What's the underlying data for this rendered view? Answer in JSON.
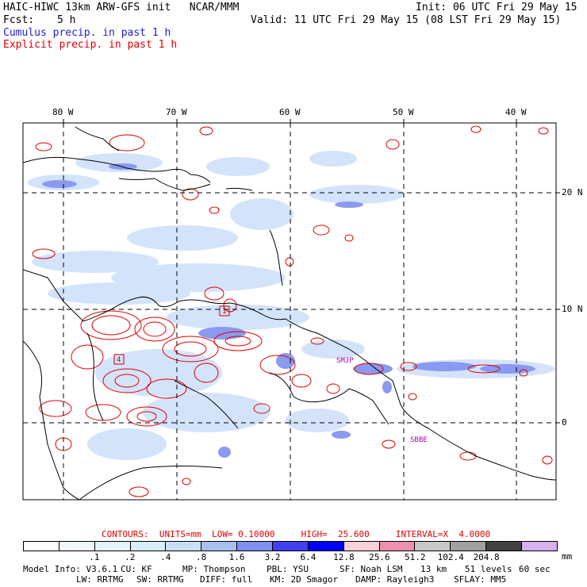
{
  "header": {
    "title": "HAIC-HIWC 13km ARW-GFS init   NCAR/MMM",
    "init": "Init: 06 UTC Fri 29 May 15",
    "fcst_label": "Fcst:",
    "fcst_value": "5 h",
    "valid": "Valid: 11 UTC Fri 29 May 15 (08 LST Fri 29 May 15)",
    "cumulus": "Cumulus precip. in past 1 h",
    "explicit": "Explicit precip. in past 1 h"
  },
  "map": {
    "lon_labels": [
      "80 W",
      "70 W",
      "60 W",
      "50 W",
      "40 W"
    ],
    "lat_labels": [
      "20 N",
      "10 N",
      "0"
    ],
    "stations": [
      "SMJP",
      "SBBE"
    ],
    "markers": [
      "1",
      "4"
    ]
  },
  "contours": {
    "text": "CONTOURS:  UNITS=mm  LOW= 0.10000     HIGH=  25.600     INTERVAL=X  4.0000"
  },
  "colorbar": {
    "colors": [
      "#ffffff",
      "#f0f8ff",
      "#e4f2fa",
      "#d8eef8",
      "#c8e0f8",
      "#a8c0f0",
      "#8090f0",
      "#4040f0",
      "#0000ff",
      "#f8d0d8",
      "#f090b0",
      "#c8c8c8",
      "#a0a0a0",
      "#404040",
      "#d8b0f0"
    ],
    "labels": [
      ".1",
      ".2",
      ".4",
      ".8",
      "1.6",
      "3.2",
      "6.4",
      "12.8",
      "25.6",
      "51.2",
      "102.4",
      "204.8"
    ],
    "units": "mm"
  },
  "footer": {
    "model_info": "Model Info: V3.6.1",
    "cu": "CU: KF",
    "mp": "MP: Thompson",
    "pbl": "PBL: YSU",
    "sf": "SF: Noah LSM",
    "res": "13 km",
    "levels": "51 levels",
    "dt": "60 sec",
    "lw": "LW: RRTMG",
    "sw": "SW: RRTMG",
    "diff": "DIFF: full",
    "km": "KM: 2D Smagor",
    "damp": "DAMP: Rayleigh3",
    "sflay": "SFLAY: MM5"
  }
}
